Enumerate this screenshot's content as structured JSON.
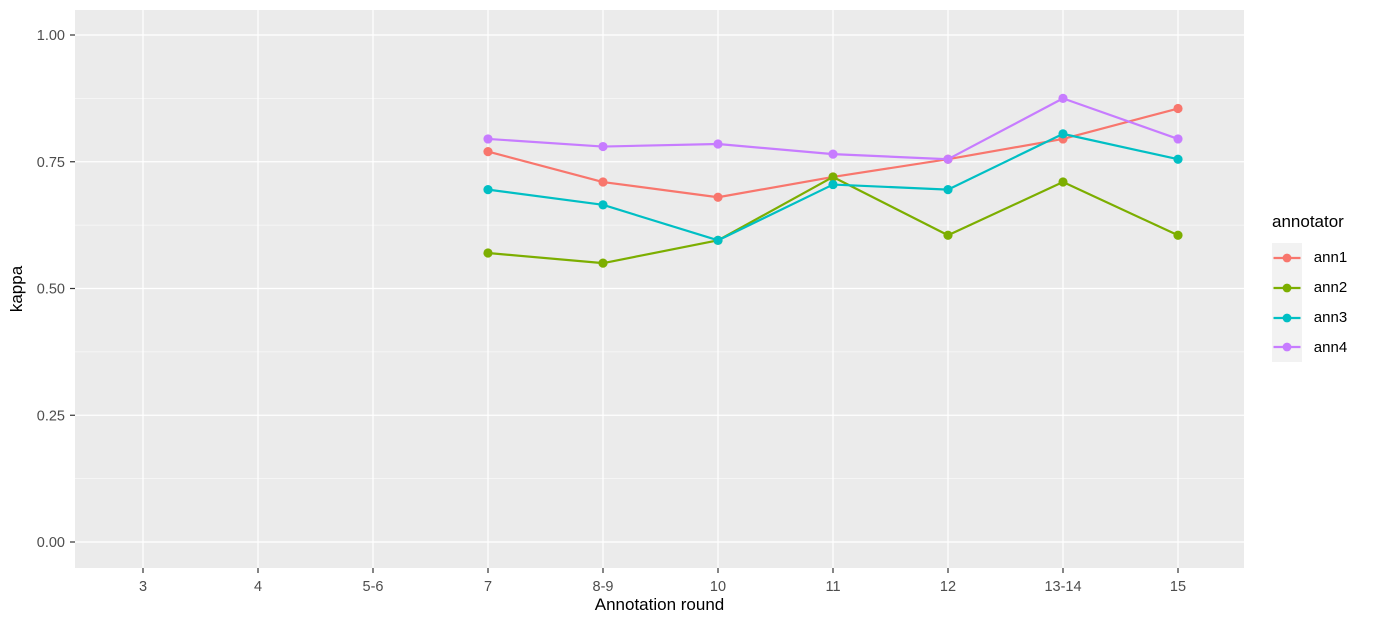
{
  "chart_data": {
    "type": "line",
    "title": "",
    "xlabel": "Annotation round",
    "ylabel": "kappa",
    "categories": [
      "3",
      "4",
      "5-6",
      "7",
      "8-9",
      "10",
      "11",
      "12",
      "13-14",
      "15"
    ],
    "y_ticks": [
      0,
      0.25,
      0.5,
      0.75,
      1
    ],
    "y_tick_labels": [
      "0.00",
      "0.25",
      "0.50",
      "0.75",
      "1.00"
    ],
    "y_minor_ticks": [
      0.125,
      0.375,
      0.625,
      0.875
    ],
    "ylim": [
      0,
      1
    ],
    "grid": true,
    "legend_position": "right",
    "legend": {
      "title": "annotator"
    },
    "series": [
      {
        "name": "ann1",
        "color": "#F8766D",
        "x": [
          "7",
          "8-9",
          "10",
          "11",
          "12",
          "13-14",
          "15"
        ],
        "values": [
          0.77,
          0.71,
          0.68,
          0.72,
          0.755,
          0.795,
          0.855
        ]
      },
      {
        "name": "ann2",
        "color": "#7CAE00",
        "x": [
          "7",
          "8-9",
          "10",
          "11",
          "12",
          "13-14",
          "15"
        ],
        "values": [
          0.57,
          0.55,
          0.595,
          0.72,
          0.605,
          0.71,
          0.605
        ]
      },
      {
        "name": "ann3",
        "color": "#00BFC4",
        "x": [
          "7",
          "8-9",
          "10",
          "11",
          "12",
          "13-14",
          "15"
        ],
        "values": [
          0.695,
          0.665,
          0.595,
          0.705,
          0.695,
          0.805,
          0.755
        ]
      },
      {
        "name": "ann4",
        "color": "#C77CFF",
        "x": [
          "7",
          "8-9",
          "10",
          "11",
          "12",
          "13-14",
          "15"
        ],
        "values": [
          0.795,
          0.78,
          0.785,
          0.765,
          0.755,
          0.875,
          0.795
        ]
      }
    ],
    "colors": {
      "panel_bg": "#EBEBEB",
      "grid": "#FFFFFF",
      "legend_key_bg": "#F2F2F2",
      "tick_mark": "#333333",
      "tick_label": "#4D4D4D",
      "axis_title": "#000000"
    }
  }
}
